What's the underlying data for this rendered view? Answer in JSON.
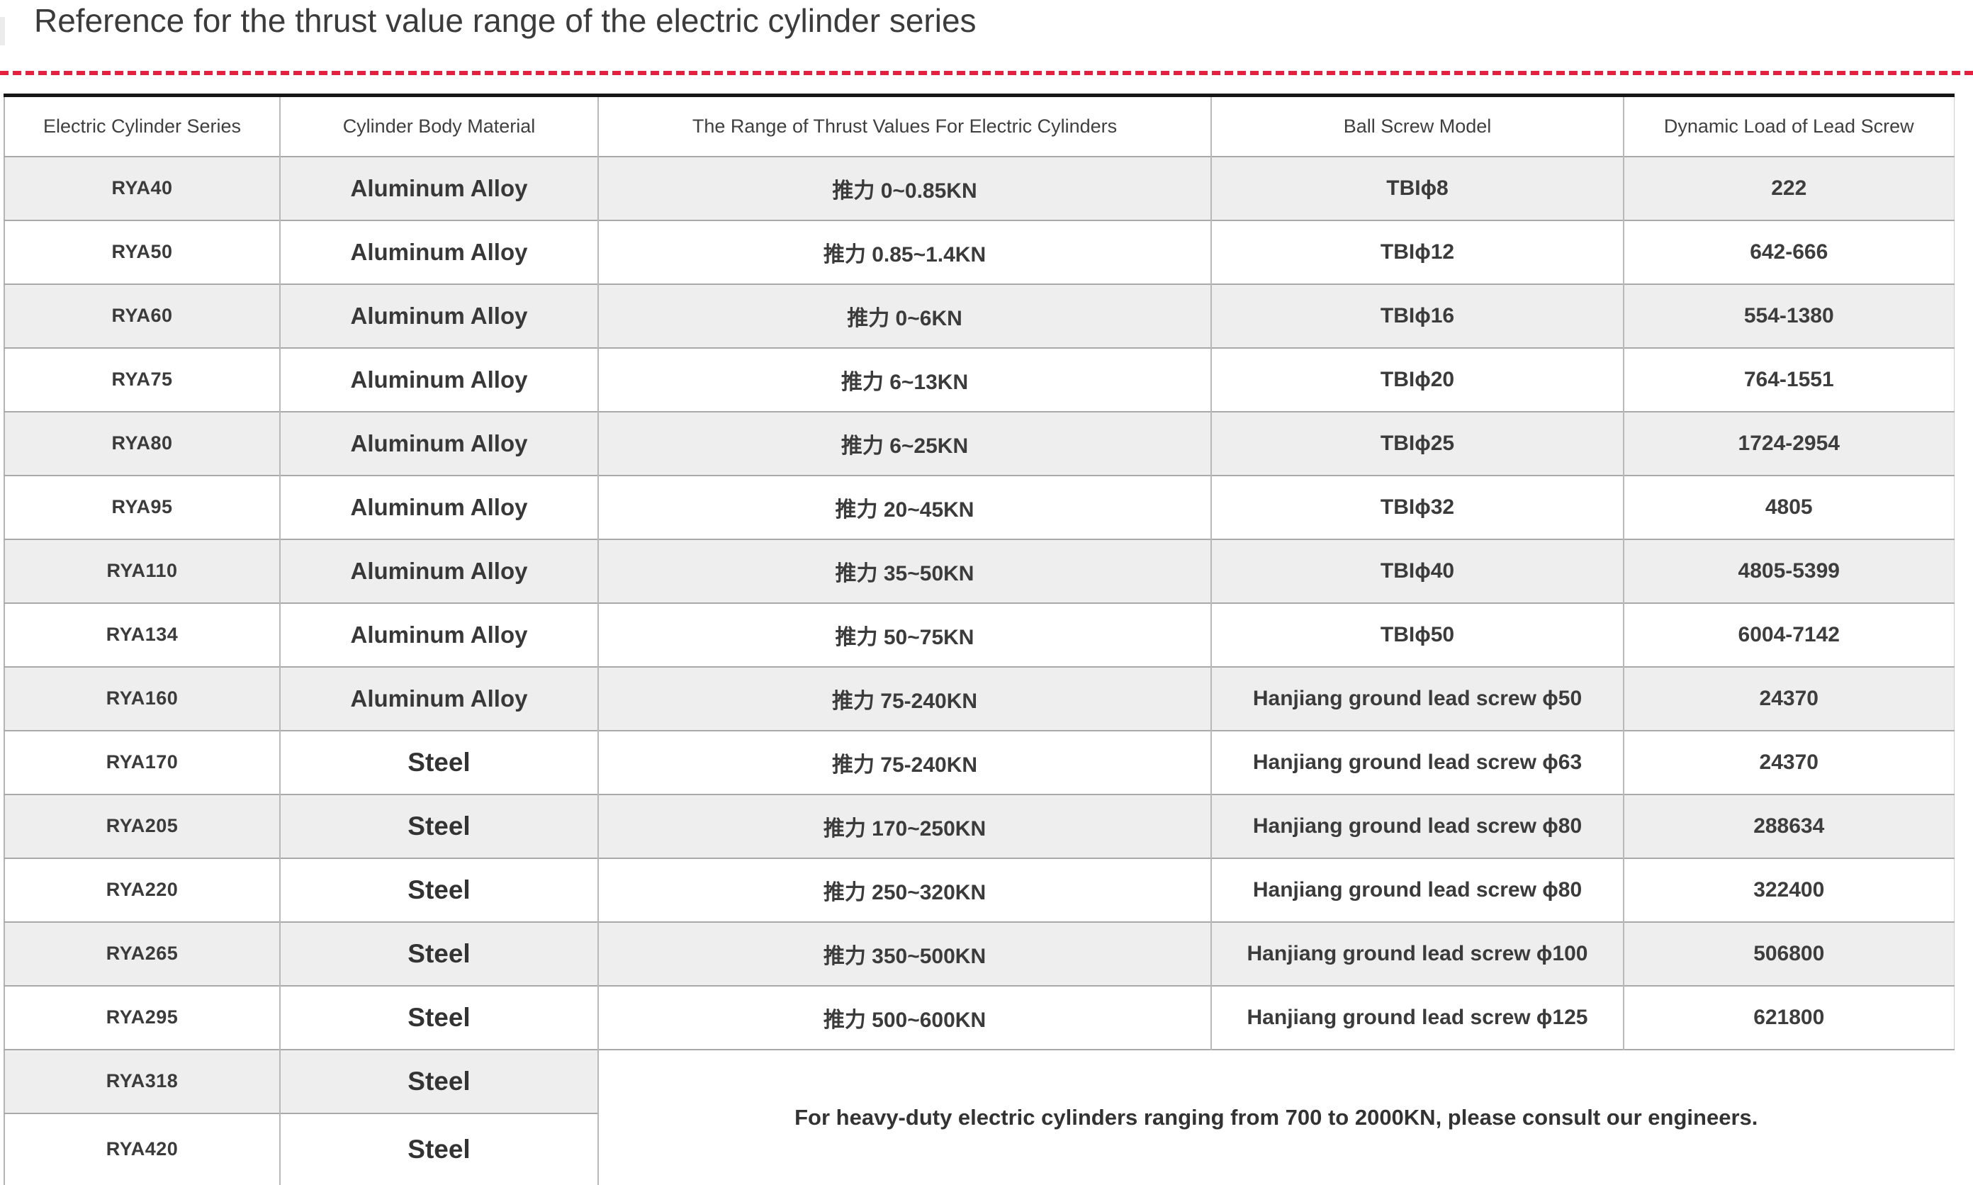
{
  "page": {
    "title": "Reference for the thrust value range of the electric cylinder series"
  },
  "colors": {
    "accent_red": "#e3203f",
    "row_shade": "#eeeeee",
    "border_gray": "#b9b9b9",
    "top_border_black": "#161616",
    "text_dark": "#3b3b3b"
  },
  "table": {
    "headers": [
      "Electric Cylinder Series",
      "Cylinder Body Material",
      "The Range of Thrust Values For Electric Cylinders",
      "Ball Screw Model",
      "Dynamic Load of Lead Screw"
    ],
    "rows": [
      {
        "series": "RYA40",
        "material": "Aluminum Alloy",
        "thrust": "推力 0~0.85KN",
        "screw": "TBIϕ8",
        "load": "222"
      },
      {
        "series": "RYA50",
        "material": "Aluminum Alloy",
        "thrust": "推力 0.85~1.4KN",
        "screw": "TBIϕ12",
        "load": "642-666"
      },
      {
        "series": "RYA60",
        "material": "Aluminum Alloy",
        "thrust": "推力 0~6KN",
        "screw": "TBIϕ16",
        "load": "554-1380"
      },
      {
        "series": "RYA75",
        "material": "Aluminum Alloy",
        "thrust": "推力 6~13KN",
        "screw": "TBIϕ20",
        "load": "764-1551"
      },
      {
        "series": "RYA80",
        "material": "Aluminum Alloy",
        "thrust": "推力 6~25KN",
        "screw": "TBIϕ25",
        "load": "1724-2954"
      },
      {
        "series": "RYA95",
        "material": "Aluminum Alloy",
        "thrust": "推力 20~45KN",
        "screw": "TBIϕ32",
        "load": "4805"
      },
      {
        "series": "RYA110",
        "material": "Aluminum Alloy",
        "thrust": "推力 35~50KN",
        "screw": "TBIϕ40",
        "load": "4805-5399"
      },
      {
        "series": "RYA134",
        "material": "Aluminum Alloy",
        "thrust": "推力 50~75KN",
        "screw": "TBIϕ50",
        "load": "6004-7142"
      },
      {
        "series": "RYA160",
        "material": "Aluminum Alloy",
        "thrust": "推力 75-240KN",
        "screw": "Hanjiang ground lead screw ϕ50",
        "load": "24370"
      },
      {
        "series": "RYA170",
        "material": "Steel",
        "thrust": "推力 75-240KN",
        "screw": "Hanjiang ground lead screw ϕ63",
        "load": "24370"
      },
      {
        "series": "RYA205",
        "material": "Steel",
        "thrust": "推力 170~250KN",
        "screw": "Hanjiang ground lead screw ϕ80",
        "load": "288634"
      },
      {
        "series": "RYA220",
        "material": "Steel",
        "thrust": "推力 250~320KN",
        "screw": "Hanjiang ground lead screw ϕ80",
        "load": "322400"
      },
      {
        "series": "RYA265",
        "material": "Steel",
        "thrust": "推力 350~500KN",
        "screw": "Hanjiang ground lead screw ϕ100",
        "load": "506800"
      },
      {
        "series": "RYA295",
        "material": "Steel",
        "thrust": "推力 500~600KN",
        "screw": "Hanjiang ground lead screw ϕ125",
        "load": "621800"
      }
    ],
    "bottom_rows": [
      {
        "series": "RYA318",
        "material": "Steel"
      },
      {
        "series": "RYA420",
        "material": "Steel"
      }
    ],
    "note": "For heavy-duty electric cylinders ranging from 700 to 2000KN, please consult our engineers."
  }
}
